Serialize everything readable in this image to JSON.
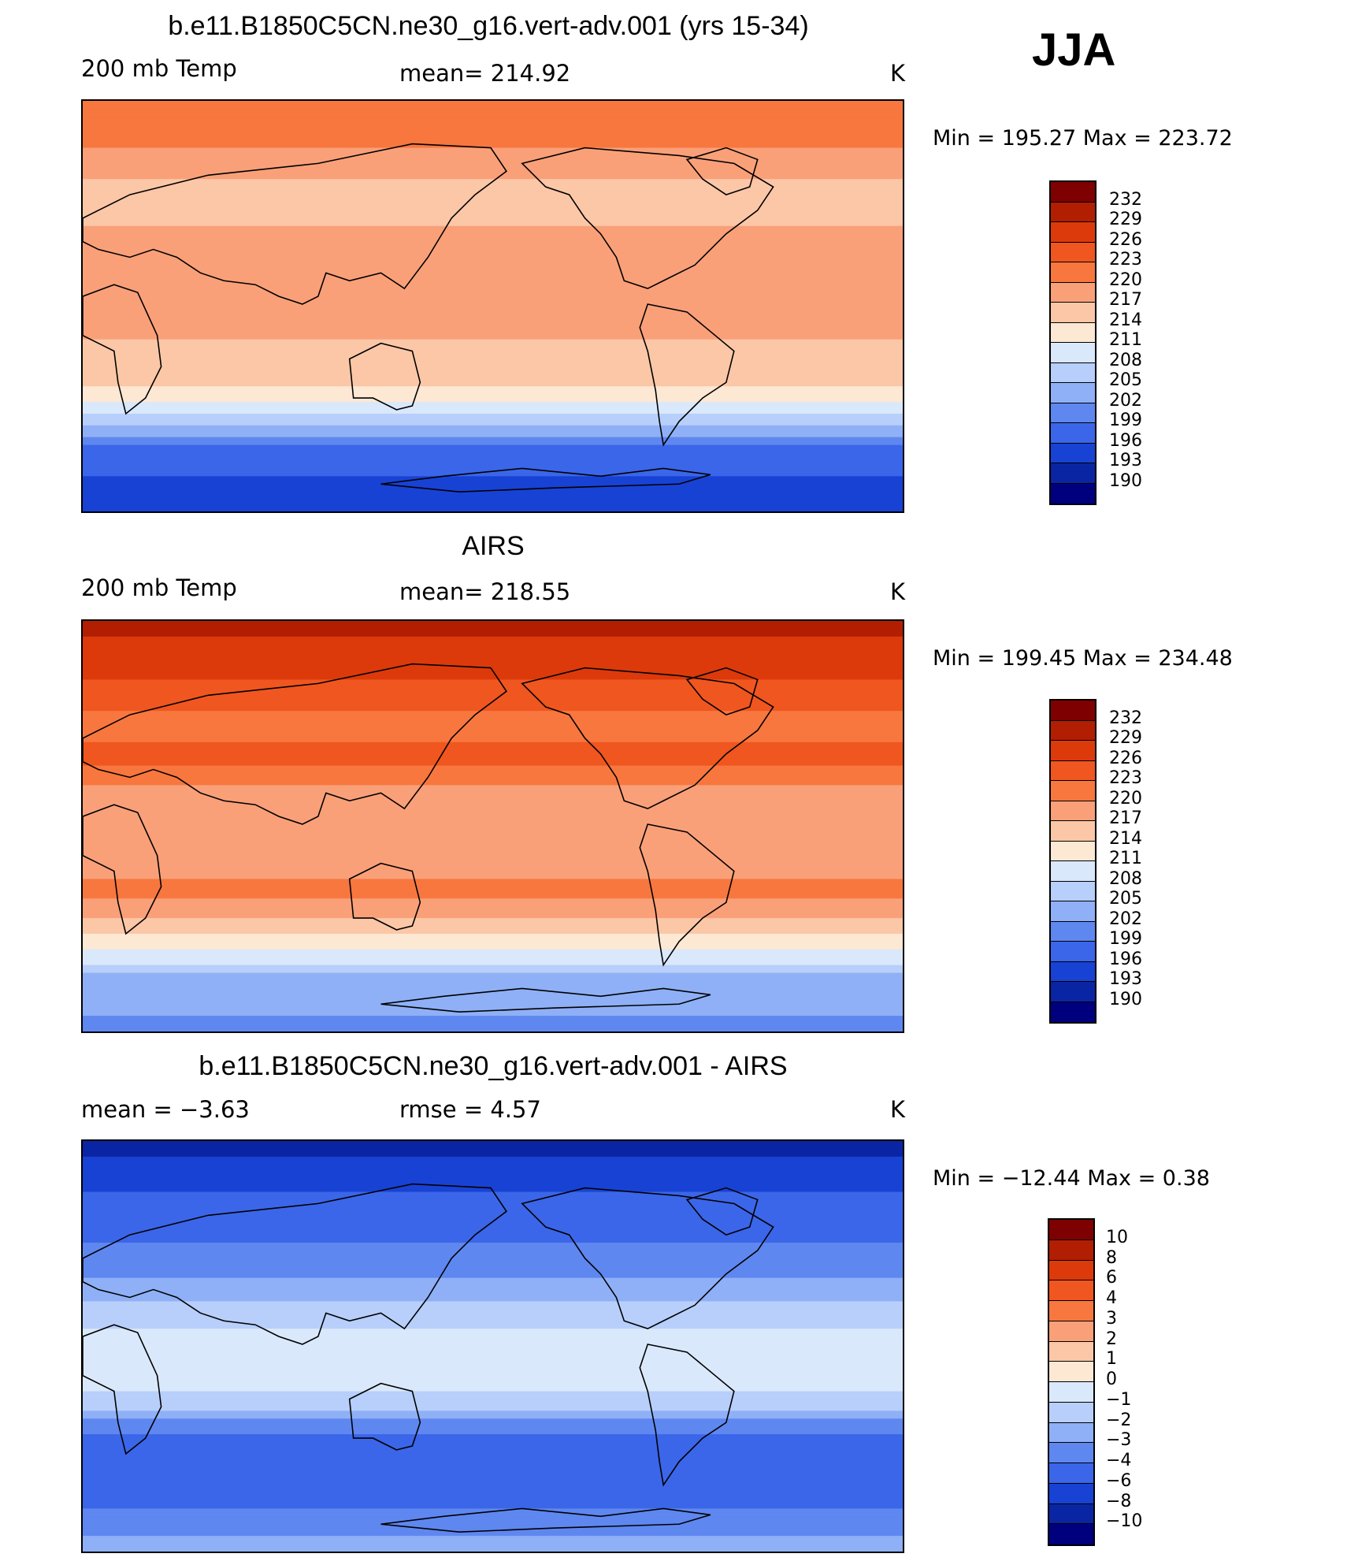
{
  "season": "JJA",
  "unit_label": "K",
  "chart_data": [
    {
      "type": "heatmap",
      "title": "b.e11.B1850C5CN.ne30_g16.vert-adv.001 (yrs 15-34)",
      "left_label": "200 mb Temp",
      "center_label": "mean=  214.92",
      "right_label": "K",
      "stats": "Min  =  195.27  Max  =  223.72",
      "min": 195.27,
      "max": 223.72,
      "mean": 214.92,
      "colorbar_levels": [
        "232",
        "229",
        "226",
        "223",
        "220",
        "217",
        "214",
        "211",
        "208",
        "205",
        "202",
        "199",
        "196",
        "193",
        "190"
      ],
      "zonal_profile": [
        {
          "lat": 90,
          "value": 223
        },
        {
          "lat": 75,
          "value": 221
        },
        {
          "lat": 60,
          "value": 218
        },
        {
          "lat": 45,
          "value": 215
        },
        {
          "lat": 30,
          "value": 218
        },
        {
          "lat": 15,
          "value": 217
        },
        {
          "lat": 0,
          "value": 217
        },
        {
          "lat": -15,
          "value": 217
        },
        {
          "lat": -30,
          "value": 216
        },
        {
          "lat": -40,
          "value": 212
        },
        {
          "lat": -45,
          "value": 209
        },
        {
          "lat": -50,
          "value": 206
        },
        {
          "lat": -55,
          "value": 203
        },
        {
          "lat": -60,
          "value": 200
        },
        {
          "lat": -65,
          "value": 197
        },
        {
          "lat": -75,
          "value": 196
        },
        {
          "lat": -90,
          "value": 195
        }
      ]
    },
    {
      "type": "heatmap",
      "title": "AIRS",
      "left_label": "200 mb Temp",
      "center_label": "mean=  218.55",
      "right_label": "K",
      "stats": "Min  =  199.45  Max  =  234.48",
      "min": 199.45,
      "max": 234.48,
      "mean": 218.55,
      "colorbar_levels": [
        "232",
        "229",
        "226",
        "223",
        "220",
        "217",
        "214",
        "211",
        "208",
        "205",
        "202",
        "199",
        "196",
        "193",
        "190"
      ],
      "zonal_profile": [
        {
          "lat": 90,
          "value": 230
        },
        {
          "lat": 75,
          "value": 228
        },
        {
          "lat": 60,
          "value": 225
        },
        {
          "lat": 45,
          "value": 222
        },
        {
          "lat": 30,
          "value": 224
        },
        {
          "lat": 15,
          "value": 219
        },
        {
          "lat": 0,
          "value": 218
        },
        {
          "lat": -15,
          "value": 219
        },
        {
          "lat": -30,
          "value": 221
        },
        {
          "lat": -40,
          "value": 217
        },
        {
          "lat": -50,
          "value": 213
        },
        {
          "lat": -55,
          "value": 210
        },
        {
          "lat": -60,
          "value": 208
        },
        {
          "lat": -65,
          "value": 205
        },
        {
          "lat": -75,
          "value": 203
        },
        {
          "lat": -90,
          "value": 201
        }
      ]
    },
    {
      "type": "heatmap",
      "title": "b.e11.B1850C5CN.ne30_g16.vert-adv.001 - AIRS",
      "left_label": "mean  =     −3.63",
      "center_label": "rmse  =      4.57",
      "right_label": "K",
      "stats": "Min  =  −12.44  Max  =     0.38",
      "min": -12.44,
      "max": 0.38,
      "mean": -3.63,
      "rmse": 4.57,
      "colorbar_levels": [
        "10",
        "8",
        "6",
        "4",
        "3",
        "2",
        "1",
        "0",
        "−1",
        "−2",
        "−3",
        "−4",
        "−6",
        "−8",
        "−10"
      ],
      "zonal_profile": [
        {
          "lat": 90,
          "value": -9
        },
        {
          "lat": 75,
          "value": -7
        },
        {
          "lat": 60,
          "value": -5
        },
        {
          "lat": 45,
          "value": -4
        },
        {
          "lat": 30,
          "value": -3
        },
        {
          "lat": 15,
          "value": -1.5
        },
        {
          "lat": 0,
          "value": -0.5
        },
        {
          "lat": -15,
          "value": -0.5
        },
        {
          "lat": -25,
          "value": -1.5
        },
        {
          "lat": -35,
          "value": -3.5
        },
        {
          "lat": -45,
          "value": -5
        },
        {
          "lat": -55,
          "value": -6
        },
        {
          "lat": -65,
          "value": -5
        },
        {
          "lat": -75,
          "value": -3.5
        },
        {
          "lat": -90,
          "value": -2.5
        }
      ]
    }
  ],
  "colors": {
    "palette": [
      "#00007f",
      "#0a2aa4",
      "#1340d0",
      "#2c5ce8",
      "#4e78f0",
      "#7799f6",
      "#a1bff9",
      "#c8dbfc",
      "#e6f0fd",
      "#fde9d6",
      "#fbc6a5",
      "#f8a07a",
      "#f5794d",
      "#ef5121",
      "#d43a0b",
      "#a91f04",
      "#7f0000"
    ]
  },
  "colorbar_fills_abs": [
    "#7f0000",
    "#b21e02",
    "#dc3a0b",
    "#f0561f",
    "#f7773f",
    "#f9a079",
    "#fbc7a7",
    "#fde8d4",
    "#dae8fb",
    "#b7cffa",
    "#8fb0f6",
    "#5f87f0",
    "#3b66e9",
    "#1842d4",
    "#0a25a3",
    "#00007f"
  ],
  "colorbar_fills_diff": [
    "#7f0000",
    "#b21e02",
    "#dc3a0b",
    "#f0561f",
    "#f7773f",
    "#f9a079",
    "#fbc7a7",
    "#fde8d4",
    "#dae8fb",
    "#b7cffa",
    "#8fb0f6",
    "#5f87f0",
    "#3b66e9",
    "#1842d4",
    "#0a25a3",
    "#00007f"
  ]
}
